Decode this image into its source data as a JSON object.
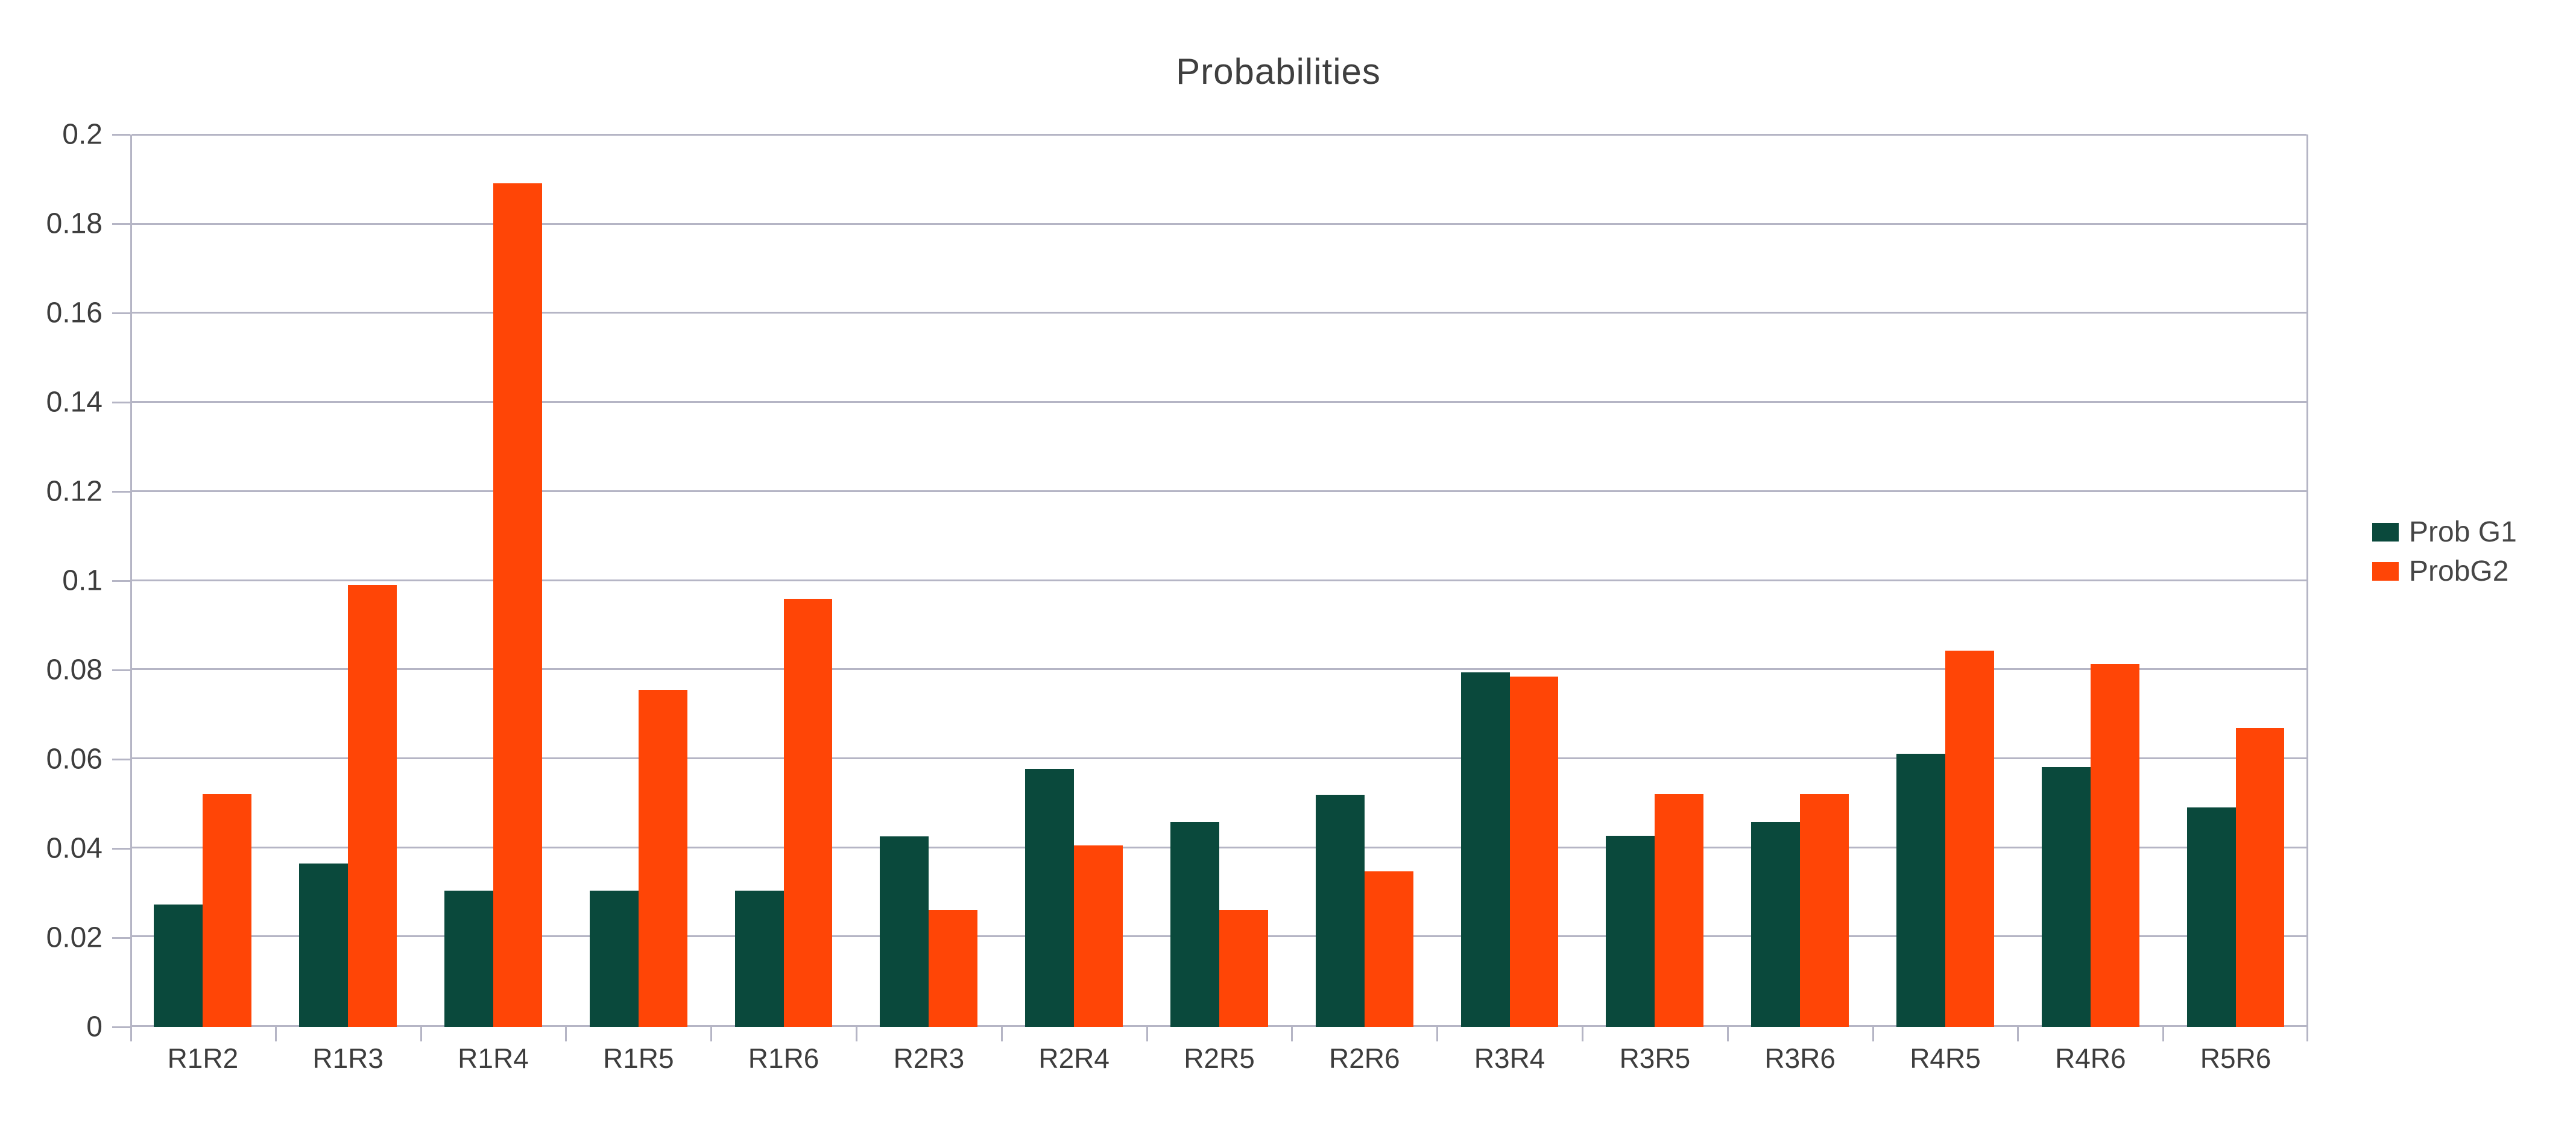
{
  "page": {
    "background": "#ffffff"
  },
  "chart_data": {
    "type": "bar",
    "title": "Probabilities",
    "categories": [
      "R1R2",
      "R1R3",
      "R1R4",
      "R1R5",
      "R1R6",
      "R2R3",
      "R2R4",
      "R2R5",
      "R2R6",
      "R3R4",
      "R3R5",
      "R3R6",
      "R4R5",
      "R4R6",
      "R5R6"
    ],
    "series": [
      {
        "name": "Prob G1",
        "color": "#0a493c",
        "values": [
          0.0275,
          0.0366,
          0.0306,
          0.0306,
          0.0306,
          0.0427,
          0.0579,
          0.0459,
          0.052,
          0.0795,
          0.0428,
          0.0459,
          0.0612,
          0.0583,
          0.0492
        ]
      },
      {
        "name": "ProbG2",
        "color": "#ff4506",
        "values": [
          0.0522,
          0.099,
          0.189,
          0.0755,
          0.0959,
          0.0262,
          0.0407,
          0.0262,
          0.0349,
          0.0785,
          0.0522,
          0.0522,
          0.0843,
          0.0813,
          0.067
        ]
      }
    ],
    "xlabel": "",
    "ylabel": "",
    "ylim": [
      0,
      0.2
    ],
    "yticks": [
      0,
      0.02,
      0.04,
      0.06,
      0.08,
      0.1,
      0.12,
      0.14,
      0.16,
      0.18,
      0.2
    ],
    "ytick_labels": [
      "0",
      "0.02",
      "0.04",
      "0.06",
      "0.08",
      "0.1",
      "0.12",
      "0.14",
      "0.16",
      "0.18",
      "0.2"
    ],
    "grid": "horizontal gridlines at every y tick",
    "legend_position": "right"
  },
  "style": {
    "grid_color": "#b5b5c5",
    "title_color": "#3f3f3f",
    "axis_label_color": "#3d3d3d",
    "legend_text_color": "#464646"
  }
}
